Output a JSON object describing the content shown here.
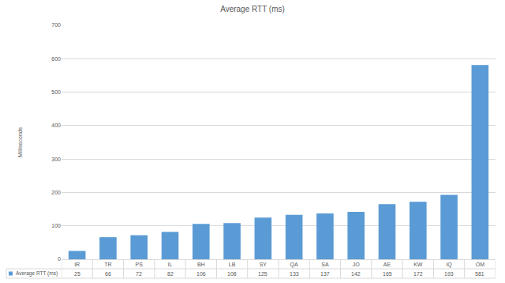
{
  "chart_data": {
    "type": "bar",
    "title": "Average RTT (ms)",
    "ylabel": "Milliseconds",
    "categories": [
      "IR",
      "TR",
      "PS",
      "IL",
      "BH",
      "LB",
      "SY",
      "QA",
      "SA",
      "JO",
      "AE",
      "KW",
      "IQ",
      "OM"
    ],
    "series": [
      {
        "name": "Average RTT (ms)",
        "color": "#5b9bd5",
        "values": [
          25,
          66,
          72,
          82,
          106,
          108,
          125,
          133,
          137,
          142,
          165,
          172,
          193,
          581
        ]
      }
    ],
    "ylim": [
      0,
      700
    ],
    "yticks": [
      0,
      100,
      200,
      300,
      400,
      500,
      600,
      700
    ],
    "grid": true
  }
}
